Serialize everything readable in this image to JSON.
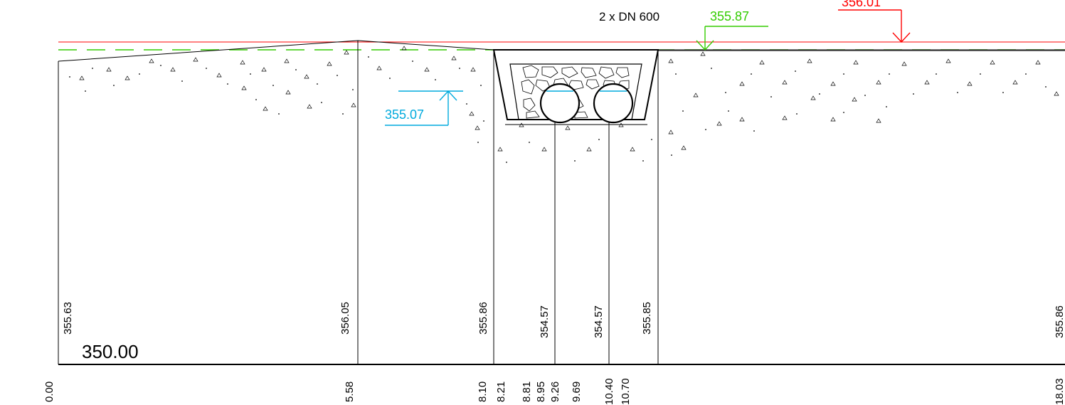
{
  "pipe_label": "2 x DN 600",
  "levels": {
    "green": "355.87",
    "red": "356.01",
    "cyan": "355.07"
  },
  "datum": "350.00",
  "elevations": [
    {
      "id": "e1",
      "text": "355.63"
    },
    {
      "id": "e2",
      "text": "356.05"
    },
    {
      "id": "e3",
      "text": "355.86"
    },
    {
      "id": "e4",
      "text": "354.57"
    },
    {
      "id": "e5",
      "text": "354.57"
    },
    {
      "id": "e6",
      "text": "355.85"
    },
    {
      "id": "e7",
      "text": "355.86"
    }
  ],
  "stations": [
    {
      "id": "s1",
      "text": "0.00"
    },
    {
      "id": "s2",
      "text": "5.58"
    },
    {
      "id": "s3",
      "text": "8.10"
    },
    {
      "id": "s4",
      "text": "8.21"
    },
    {
      "id": "s5",
      "text": "8.81"
    },
    {
      "id": "s6",
      "text": "8.95"
    },
    {
      "id": "s7",
      "text": "9.26"
    },
    {
      "id": "s8",
      "text": "9.69"
    },
    {
      "id": "s9",
      "text": "10.40"
    },
    {
      "id": "s10",
      "text": "10.70"
    },
    {
      "id": "s11",
      "text": "18.03"
    }
  ],
  "colors": {
    "green": "#33cc00",
    "red": "#ff0000",
    "cyan": "#00aadd",
    "line": "#000000"
  }
}
